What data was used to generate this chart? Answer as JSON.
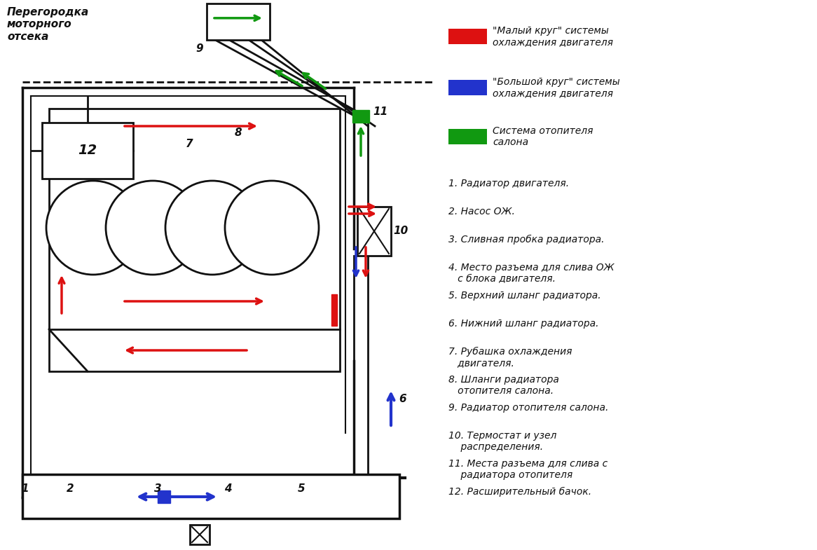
{
  "legend_items": [
    {
      "color": "#dd1111",
      "label": "\"Малый круг\" системы\nохлаждения двигателя"
    },
    {
      "color": "#2233cc",
      "label": "\"Большой круг\" системы\nохлаждения двигателя"
    },
    {
      "color": "#119911",
      "label": "Система отопителя\nсалона"
    }
  ],
  "numbered_items": [
    "1. Радиатор двигателя.",
    "2. Насос ОЖ.",
    "3. Сливная пробка радиатора.",
    "4. Место разъема для слива ОЖ\n   с блока двигателя.",
    "5. Верхний шланг радиатора.",
    "6. Нижний шланг радиатора.",
    "7. Рубашка охлаждения\n   двигателя.",
    "8. Шланги радиатора\n   отопителя салона.",
    "9. Радиатор отопителя салона.",
    "10. Термостат и узел\n    распределения.",
    "11. Места разъема для слива с\n    радиатора отопителя",
    "12. Расширительный бачок."
  ],
  "bg_color": "#ffffff",
  "partition_label": "Перегородка\nмоторного\nотсека",
  "red": "#dd1111",
  "blue": "#2233cc",
  "green": "#119911",
  "black": "#111111"
}
